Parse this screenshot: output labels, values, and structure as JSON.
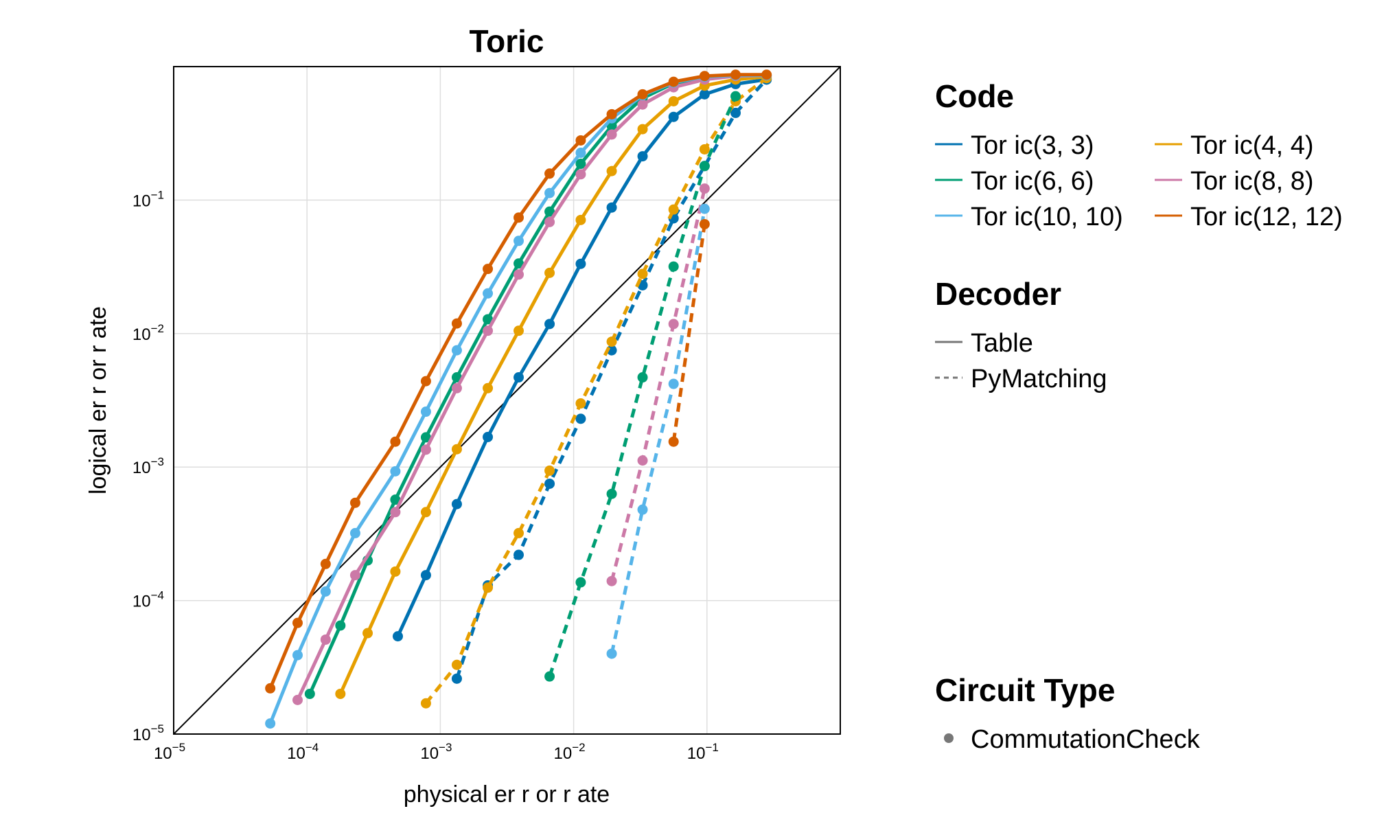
{
  "chart_data": {
    "type": "line",
    "title": "Toric",
    "xlabel": "physical er r or  r ate",
    "ylabel": "logical er r or  r ate",
    "xscale": "log",
    "yscale": "log",
    "xlim": [
      1e-05,
      1
    ],
    "ylim": [
      1e-05,
      1
    ],
    "grid": true,
    "x_ticks": [
      {
        "value": 1e-05,
        "base": "10",
        "exp": "−5"
      },
      {
        "value": 0.0001,
        "base": "10",
        "exp": "−4"
      },
      {
        "value": 0.001,
        "base": "10",
        "exp": "−3"
      },
      {
        "value": 0.01,
        "base": "10",
        "exp": "−2"
      },
      {
        "value": 0.1,
        "base": "10",
        "exp": "−1"
      }
    ],
    "y_ticks": [
      {
        "value": 1e-05,
        "base": "10",
        "exp": "−5"
      },
      {
        "value": 0.0001,
        "base": "10",
        "exp": "−4"
      },
      {
        "value": 0.001,
        "base": "10",
        "exp": "−3"
      },
      {
        "value": 0.01,
        "base": "10",
        "exp": "−2"
      },
      {
        "value": 0.1,
        "base": "10",
        "exp": "−1"
      }
    ],
    "reference_line": {
      "x": [
        1e-05,
        1
      ],
      "y": [
        1e-05,
        1
      ],
      "color": "#000000"
    },
    "series": [
      {
        "name": "Tor ic(3, 3)",
        "code": "Tor ic(3, 3)",
        "decoder": "Table",
        "color": "#0072B2",
        "dash": false,
        "x": [
          0.00048,
          0.00078,
          0.00133,
          0.00227,
          0.00387,
          0.0066,
          0.0113,
          0.0193,
          0.0329,
          0.0562,
          0.096,
          0.164,
          0.28
        ],
        "y": [
          5.4e-05,
          0.000155,
          0.000528,
          0.00168,
          0.0047,
          0.0118,
          0.0333,
          0.088,
          0.213,
          0.42,
          0.62,
          0.74,
          0.8
        ]
      },
      {
        "name": "Tor ic(3, 3)",
        "code": "Tor ic(3, 3)",
        "decoder": "PyMatching",
        "color": "#0072B2",
        "dash": true,
        "x": [
          0.00133,
          0.00227,
          0.00387,
          0.0066,
          0.0113,
          0.0193,
          0.0329,
          0.0562,
          0.096,
          0.164,
          0.28
        ],
        "y": [
          2.6e-05,
          0.00013,
          0.00022,
          0.00075,
          0.0023,
          0.0075,
          0.023,
          0.073,
          0.18,
          0.45,
          0.8
        ]
      },
      {
        "name": "Tor ic(4, 4)",
        "code": "Tor ic(4, 4)",
        "decoder": "Table",
        "color": "#E69F00",
        "dash": false,
        "x": [
          0.000178,
          0.000285,
          0.00046,
          0.00078,
          0.00133,
          0.00227,
          0.00387,
          0.0066,
          0.0113,
          0.0193,
          0.0329,
          0.0562,
          0.096,
          0.164,
          0.28
        ],
        "y": [
          2e-05,
          5.7e-05,
          0.000165,
          0.00046,
          0.00136,
          0.0039,
          0.0105,
          0.0285,
          0.071,
          0.165,
          0.34,
          0.55,
          0.72,
          0.8,
          0.84
        ]
      },
      {
        "name": "Tor ic(4, 4)",
        "code": "Tor ic(4, 4)",
        "decoder": "PyMatching",
        "color": "#E69F00",
        "dash": true,
        "x": [
          0.00078,
          0.00133,
          0.00227,
          0.00387,
          0.0066,
          0.0113,
          0.0193,
          0.0329,
          0.0562,
          0.096,
          0.164,
          0.28
        ],
        "y": [
          1.7e-05,
          3.3e-05,
          0.000125,
          0.00032,
          0.00094,
          0.003,
          0.0087,
          0.028,
          0.085,
          0.24,
          0.55,
          0.82
        ]
      },
      {
        "name": "Tor ic(6, 6)",
        "code": "Tor ic(6, 6)",
        "decoder": "Table",
        "color": "#009E73",
        "dash": false,
        "x": [
          0.000105,
          0.000178,
          0.000285,
          0.00046,
          0.00078,
          0.00133,
          0.00227,
          0.00387,
          0.0066,
          0.0113,
          0.0193,
          0.0329,
          0.0562,
          0.096,
          0.164,
          0.28
        ],
        "y": [
          2e-05,
          6.5e-05,
          0.0002,
          0.00057,
          0.00167,
          0.0047,
          0.0128,
          0.0335,
          0.082,
          0.187,
          0.36,
          0.58,
          0.75,
          0.83,
          0.86,
          0.86
        ]
      },
      {
        "name": "Tor ic(6, 6)",
        "code": "Tor ic(6, 6)",
        "decoder": "PyMatching",
        "color": "#009E73",
        "dash": true,
        "x": [
          0.0066,
          0.0113,
          0.0193,
          0.0329,
          0.0562,
          0.096,
          0.164
        ],
        "y": [
          2.7e-05,
          0.000137,
          0.00063,
          0.0047,
          0.0318,
          0.18,
          0.6
        ]
      },
      {
        "name": "Tor ic(8, 8)",
        "code": "Tor ic(8, 8)",
        "decoder": "Table",
        "color": "#CC79A7",
        "dash": false,
        "x": [
          8.5e-05,
          0.000138,
          0.00023,
          0.00046,
          0.00078,
          0.00133,
          0.00227,
          0.00387,
          0.0066,
          0.0113,
          0.0193,
          0.0329,
          0.0562,
          0.096,
          0.164,
          0.28
        ],
        "y": [
          1.8e-05,
          5.1e-05,
          0.000155,
          0.00046,
          0.00135,
          0.0039,
          0.0105,
          0.0277,
          0.0685,
          0.156,
          0.31,
          0.52,
          0.7,
          0.8,
          0.85,
          0.86
        ]
      },
      {
        "name": "Tor ic(8, 8)",
        "code": "Tor ic(8, 8)",
        "decoder": "PyMatching",
        "color": "#CC79A7",
        "dash": true,
        "x": [
          0.0193,
          0.0329,
          0.0562,
          0.096
        ],
        "y": [
          0.00014,
          0.00112,
          0.0118,
          0.122
        ]
      },
      {
        "name": "Tor ic(10, 10)",
        "code": "Tor ic(10, 10)",
        "decoder": "Table",
        "color": "#56B4E9",
        "dash": false,
        "x": [
          5.3e-05,
          8.5e-05,
          0.000138,
          0.00023,
          0.00046,
          0.00078,
          0.00133,
          0.00227,
          0.00387,
          0.0066,
          0.0113,
          0.0193,
          0.0329,
          0.0562,
          0.096,
          0.164,
          0.28
        ],
        "y": [
          1.2e-05,
          3.9e-05,
          0.000117,
          0.00032,
          0.00093,
          0.0026,
          0.0075,
          0.02,
          0.0495,
          0.113,
          0.226,
          0.41,
          0.61,
          0.76,
          0.84,
          0.86,
          0.86
        ]
      },
      {
        "name": "Tor ic(10, 10)",
        "code": "Tor ic(10, 10)",
        "decoder": "PyMatching",
        "color": "#56B4E9",
        "dash": true,
        "x": [
          0.0193,
          0.0329,
          0.0562,
          0.096
        ],
        "y": [
          4e-05,
          0.00048,
          0.0042,
          0.086
        ]
      },
      {
        "name": "Tor ic(12, 12)",
        "code": "Tor ic(12, 12)",
        "decoder": "Table",
        "color": "#D55E00",
        "dash": false,
        "x": [
          5.3e-05,
          8.5e-05,
          0.000138,
          0.00023,
          0.00046,
          0.00078,
          0.00133,
          0.00227,
          0.00387,
          0.0066,
          0.0113,
          0.0193,
          0.0329,
          0.0562,
          0.096,
          0.164,
          0.28
        ],
        "y": [
          2.2e-05,
          6.8e-05,
          0.000188,
          0.00054,
          0.00155,
          0.0044,
          0.0119,
          0.0305,
          0.074,
          0.158,
          0.28,
          0.44,
          0.62,
          0.77,
          0.85,
          0.87,
          0.87
        ]
      },
      {
        "name": "Tor ic(12, 12)",
        "code": "Tor ic(12, 12)",
        "decoder": "PyMatching",
        "color": "#D55E00",
        "dash": true,
        "x": [
          0.0562,
          0.096
        ],
        "y": [
          0.00155,
          0.066
        ]
      }
    ],
    "legend": {
      "placement": "right",
      "code_title": "Code",
      "code_entries": [
        {
          "label": "Tor ic(3, 3)",
          "color": "#0072B2"
        },
        {
          "label": "Tor ic(4, 4)",
          "color": "#E69F00"
        },
        {
          "label": "Tor ic(6, 6)",
          "color": "#009E73"
        },
        {
          "label": "Tor ic(8, 8)",
          "color": "#CC79A7"
        },
        {
          "label": "Tor ic(10, 10)",
          "color": "#56B4E9"
        },
        {
          "label": "Tor ic(12, 12)",
          "color": "#D55E00"
        }
      ],
      "decoder_title": "Decoder",
      "decoder_entries": [
        {
          "label": "Table",
          "dash": false
        },
        {
          "label": "PyMatching",
          "dash": true
        }
      ],
      "circuit_title": "Circuit Type",
      "circuit_entries": [
        {
          "label": "CommutationCheck"
        }
      ]
    }
  }
}
